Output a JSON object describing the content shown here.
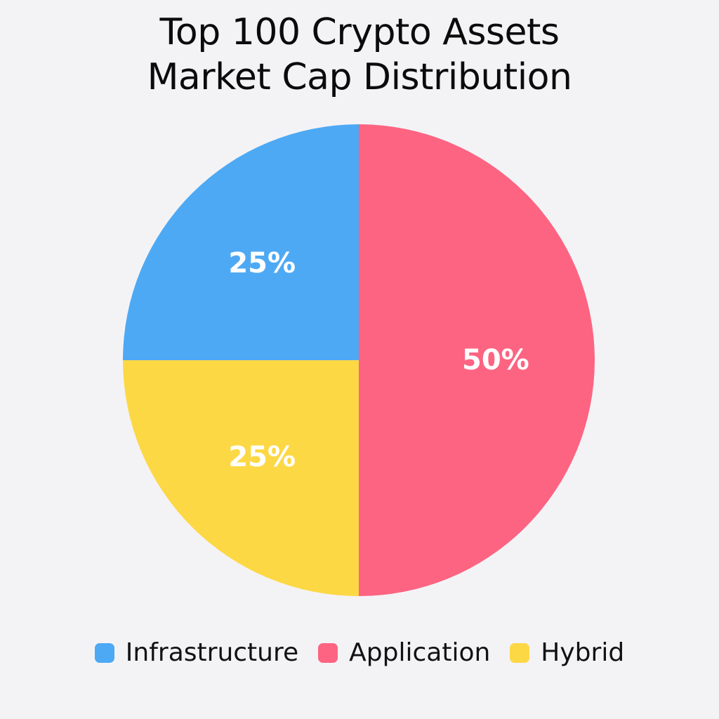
{
  "chart_data": {
    "type": "pie",
    "title": "Top 100 Crypto Assets Market Cap Distribution",
    "title_lines": [
      "Top 100 Crypto Assets",
      "Market Cap Distribution"
    ],
    "legend_position": "bottom",
    "slices": [
      {
        "name": "Application",
        "value": 50,
        "label": "50%",
        "color": "#fd6482"
      },
      {
        "name": "Hybrid",
        "value": 25,
        "label": "25%",
        "color": "#fdd845"
      },
      {
        "name": "Infrastructure",
        "value": 25,
        "label": "25%",
        "color": "#4ea9f4"
      }
    ],
    "legend": [
      {
        "name": "Infrastructure",
        "color": "#4ea9f4"
      },
      {
        "name": "Application",
        "color": "#fd6482"
      },
      {
        "name": "Hybrid",
        "color": "#fdd845"
      }
    ]
  }
}
